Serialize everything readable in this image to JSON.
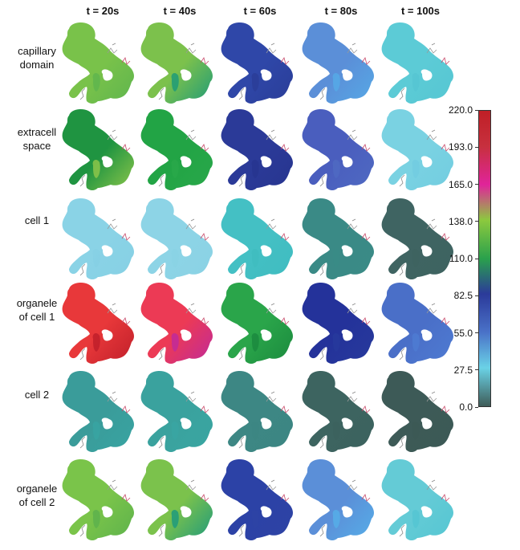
{
  "columns": [
    "t = 20s",
    "t = 40s",
    "t = 60s",
    "t = 80s",
    "t = 100s"
  ],
  "rows": [
    {
      "label_line1": "capillary",
      "label_line2": "domain",
      "colors": [
        "#79c24a",
        "#7cc14c",
        "#2f47a8",
        "#5b8fd8",
        "#5ccbd6"
      ],
      "accent": [
        "#5fb54e",
        "#1f9b78",
        "#2a3d98",
        "#56a9e6",
        "#56c6d2"
      ]
    },
    {
      "label_line1": "extracell",
      "label_line2": "space",
      "colors": [
        "#1f9441",
        "#22a445",
        "#2b3a98",
        "#4a5ebe",
        "#7ad2e2"
      ],
      "accent": [
        "#8cc64a",
        "#29a84a",
        "#27358f",
        "#4f6ac2",
        "#72cde0"
      ]
    },
    {
      "label_line1": "cell 1",
      "label_line2": "",
      "colors": [
        "#8ad3e6",
        "#8dd4e6",
        "#44c0c4",
        "#3a8a86",
        "#3f6462"
      ],
      "accent": [
        "#86d0e4",
        "#8ad2e4",
        "#3fbcc0",
        "#3a8b86",
        "#3e6360"
      ]
    },
    {
      "label_line1": "organele",
      "label_line2": "of cell 1",
      "colors": [
        "#e8383a",
        "#ec3a55",
        "#2aa54a",
        "#24329a",
        "#4a6fc8"
      ],
      "accent": [
        "#c01f2a",
        "#c02a9a",
        "#1b8a3e",
        "#273a9c",
        "#4e7bd2"
      ]
    },
    {
      "label_line1": "cell 2",
      "label_line2": "",
      "colors": [
        "#3a9c9a",
        "#3aa29e",
        "#3d8784",
        "#3d6460",
        "#3d5a57"
      ],
      "accent": [
        "#38a4a2",
        "#39a6a2",
        "#3c8682",
        "#3c625e",
        "#3c5955"
      ]
    },
    {
      "label_line1": "organele",
      "label_line2": "of cell 2",
      "colors": [
        "#7ac44a",
        "#7bc24c",
        "#2c42a6",
        "#5b8fd8",
        "#64cbd6"
      ],
      "accent": [
        "#5db24c",
        "#1f9a7c",
        "#2e43a4",
        "#56aee8",
        "#55c6d2"
      ]
    }
  ],
  "colorbar": {
    "ticks": [
      "220.0",
      "193.0",
      "165.0",
      "138.0",
      "110.0",
      "82.5",
      "55.0",
      "27.5",
      "0.0"
    ],
    "range": [
      0,
      220
    ],
    "stops": [
      "#3f5c58",
      "#6ad2e6",
      "#4a72c8",
      "#2b3a9a",
      "#2aa14c",
      "#8cc93e",
      "#e0249a",
      "#c7303e",
      "#c01f26"
    ]
  }
}
